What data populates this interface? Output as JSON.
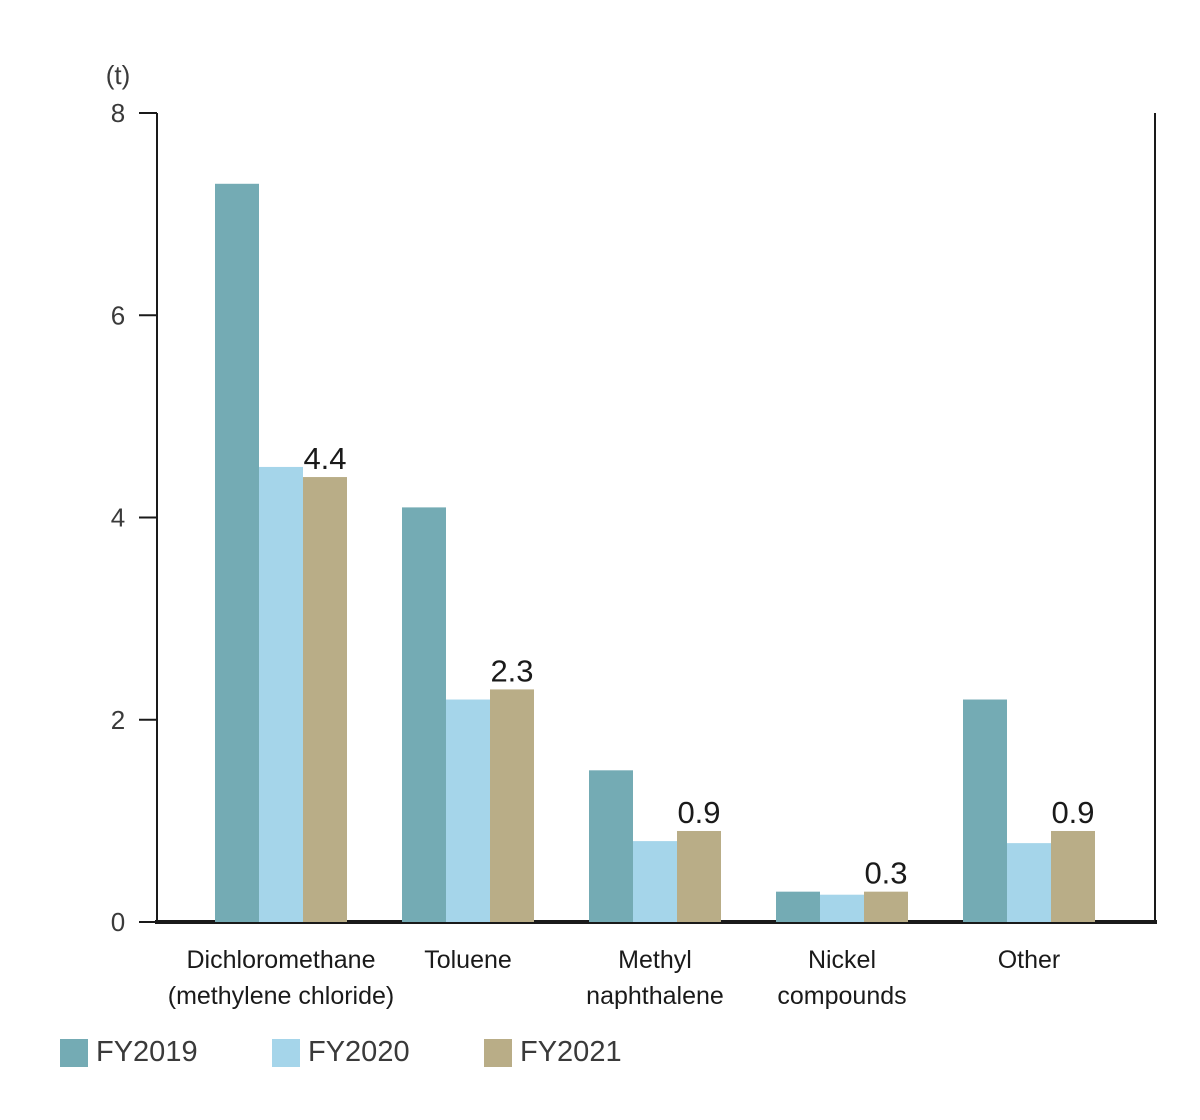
{
  "chart_data": {
    "type": "bar",
    "unit_label": "(t)",
    "categories": [
      [
        "Dichloromethane",
        "(methylene chloride)"
      ],
      [
        "Toluene"
      ],
      [
        "Methyl",
        "naphthalene"
      ],
      [
        "Nickel",
        "compounds"
      ],
      [
        "Other"
      ]
    ],
    "series": [
      {
        "name": "FY2019",
        "color": "#74abb4",
        "values": [
          7.3,
          4.1,
          1.5,
          0.3,
          2.2
        ]
      },
      {
        "name": "FY2020",
        "color": "#a5d5ea",
        "values": [
          4.5,
          2.2,
          0.8,
          0.27,
          0.78
        ]
      },
      {
        "name": "FY2021",
        "color": "#b9ad87",
        "values": [
          4.4,
          2.3,
          0.9,
          0.3,
          0.9
        ]
      }
    ],
    "data_labels": [
      "4.4",
      "2.3",
      "0.9",
      "0.3",
      "0.9"
    ],
    "data_label_series": 2,
    "yticks": [
      "0",
      "2",
      "4",
      "6",
      "8"
    ],
    "ylim": [
      0,
      8
    ],
    "grid": false,
    "legend_position": "bottom-left"
  }
}
